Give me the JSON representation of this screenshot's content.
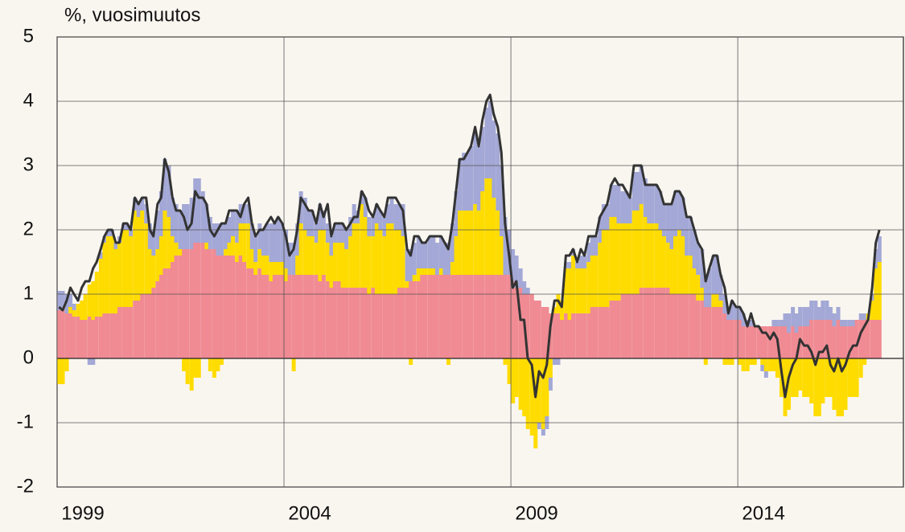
{
  "chart_data": {
    "type": "bar",
    "stacked": true,
    "y_label": "%, vuosimuutos",
    "xlim": [
      1999,
      2017.65
    ],
    "xticks": [
      1999,
      2004,
      2009,
      2014
    ],
    "ylim": [
      -2,
      5
    ],
    "yticks": [
      -2,
      -1,
      0,
      1,
      2,
      3,
      4,
      5
    ],
    "grid": true,
    "x": [
      1999,
      1999.08,
      1999.17,
      1999.25,
      1999.33,
      1999.42,
      1999.5,
      1999.58,
      1999.67,
      1999.75,
      1999.83,
      1999.92,
      2000,
      2000.08,
      2000.17,
      2000.25,
      2000.33,
      2000.42,
      2000.5,
      2000.58,
      2000.67,
      2000.75,
      2000.83,
      2000.92,
      2001,
      2001.08,
      2001.17,
      2001.25,
      2001.33,
      2001.42,
      2001.5,
      2001.58,
      2001.67,
      2001.75,
      2001.83,
      2001.92,
      2002,
      2002.08,
      2002.17,
      2002.25,
      2002.33,
      2002.42,
      2002.5,
      2002.58,
      2002.67,
      2002.75,
      2002.83,
      2002.92,
      2003,
      2003.08,
      2003.17,
      2003.25,
      2003.33,
      2003.42,
      2003.5,
      2003.58,
      2003.67,
      2003.75,
      2003.83,
      2003.92,
      2004,
      2004.08,
      2004.17,
      2004.25,
      2004.33,
      2004.42,
      2004.5,
      2004.58,
      2004.67,
      2004.75,
      2004.83,
      2004.92,
      2005,
      2005.08,
      2005.17,
      2005.25,
      2005.33,
      2005.42,
      2005.5,
      2005.58,
      2005.67,
      2005.75,
      2005.83,
      2005.92,
      2006,
      2006.08,
      2006.17,
      2006.25,
      2006.33,
      2006.42,
      2006.5,
      2006.58,
      2006.67,
      2006.75,
      2006.83,
      2006.92,
      2007,
      2007.08,
      2007.17,
      2007.25,
      2007.33,
      2007.42,
      2007.5,
      2007.58,
      2007.67,
      2007.75,
      2007.83,
      2007.92,
      2008,
      2008.08,
      2008.17,
      2008.25,
      2008.33,
      2008.42,
      2008.5,
      2008.58,
      2008.67,
      2008.75,
      2008.83,
      2008.92,
      2009,
      2009.08,
      2009.17,
      2009.25,
      2009.33,
      2009.42,
      2009.5,
      2009.58,
      2009.67,
      2009.75,
      2009.83,
      2009.92,
      2010,
      2010.08,
      2010.17,
      2010.25,
      2010.33,
      2010.42,
      2010.5,
      2010.58,
      2010.67,
      2010.75,
      2010.83,
      2010.92,
      2011,
      2011.08,
      2011.17,
      2011.25,
      2011.33,
      2011.42,
      2011.5,
      2011.58,
      2011.67,
      2011.75,
      2011.83,
      2011.92,
      2012,
      2012.08,
      2012.17,
      2012.25,
      2012.33,
      2012.42,
      2012.5,
      2012.58,
      2012.67,
      2012.75,
      2012.83,
      2012.92,
      2013,
      2013.08,
      2013.17,
      2013.25,
      2013.33,
      2013.42,
      2013.5,
      2013.58,
      2013.67,
      2013.75,
      2013.83,
      2013.92,
      2014,
      2014.08,
      2014.17,
      2014.25,
      2014.33,
      2014.42,
      2014.5,
      2014.58,
      2014.67,
      2014.75,
      2014.83,
      2014.92,
      2015,
      2015.08,
      2015.17,
      2015.25,
      2015.33,
      2015.42,
      2015.5,
      2015.58,
      2015.67,
      2015.75,
      2015.83,
      2015.92,
      2016,
      2016.08,
      2016.17,
      2016.25,
      2016.33,
      2016.42,
      2016.5,
      2016.58,
      2016.67,
      2016.75,
      2016.83,
      2016.92,
      2017,
      2017.08
    ],
    "series": [
      {
        "color": "#f08b94",
        "values": [
          0.75,
          0.75,
          0.7,
          0.7,
          0.65,
          0.65,
          0.6,
          0.6,
          0.65,
          0.6,
          0.65,
          0.65,
          0.7,
          0.7,
          0.7,
          0.7,
          0.8,
          0.8,
          0.8,
          0.8,
          0.9,
          0.9,
          1.0,
          1.0,
          1.0,
          1.1,
          1.2,
          1.3,
          1.4,
          1.4,
          1.5,
          1.6,
          1.6,
          1.7,
          1.7,
          1.7,
          1.8,
          1.8,
          1.8,
          1.7,
          1.7,
          1.7,
          1.6,
          1.6,
          1.6,
          1.6,
          1.6,
          1.5,
          1.6,
          1.5,
          1.4,
          1.4,
          1.3,
          1.4,
          1.3,
          1.3,
          1.2,
          1.3,
          1.3,
          1.3,
          1.2,
          1.3,
          1.3,
          1.3,
          1.3,
          1.3,
          1.3,
          1.3,
          1.3,
          1.2,
          1.3,
          1.2,
          1.1,
          1.2,
          1.2,
          1.1,
          1.1,
          1.1,
          1.1,
          1.1,
          1.1,
          1.1,
          1.0,
          1.1,
          1.0,
          1.0,
          1.0,
          1.0,
          1.0,
          1.0,
          1.1,
          1.1,
          1.1,
          1.2,
          1.2,
          1.2,
          1.3,
          1.3,
          1.3,
          1.3,
          1.3,
          1.3,
          1.3,
          1.3,
          1.3,
          1.3,
          1.3,
          1.3,
          1.3,
          1.3,
          1.3,
          1.3,
          1.3,
          1.3,
          1.3,
          1.3,
          1.3,
          1.3,
          1.3,
          1.3,
          1.2,
          1.1,
          1.1,
          1.0,
          1.0,
          1.0,
          0.9,
          0.9,
          0.8,
          0.8,
          0.7,
          0.7,
          0.7,
          0.6,
          0.7,
          0.6,
          0.7,
          0.7,
          0.7,
          0.7,
          0.7,
          0.8,
          0.8,
          0.8,
          0.8,
          0.8,
          0.9,
          0.9,
          0.9,
          1.0,
          1.0,
          1.0,
          1.0,
          1.0,
          1.1,
          1.1,
          1.1,
          1.1,
          1.1,
          1.1,
          1.1,
          1.1,
          1.0,
          1.0,
          1.0,
          1.0,
          1.0,
          1.0,
          1.0,
          0.9,
          0.9,
          0.8,
          0.8,
          0.8,
          0.8,
          0.8,
          0.7,
          0.6,
          0.6,
          0.6,
          0.6,
          0.5,
          0.5,
          0.5,
          0.5,
          0.5,
          0.5,
          0.5,
          0.5,
          0.5,
          0.5,
          0.5,
          0.5,
          0.4,
          0.5,
          0.4,
          0.5,
          0.5,
          0.5,
          0.6,
          0.6,
          0.6,
          0.6,
          0.6,
          0.6,
          0.5,
          0.6,
          0.5,
          0.5,
          0.5,
          0.5,
          0.6,
          0.6,
          0.6,
          0.6,
          0.6,
          0.6,
          0.6
        ]
      },
      {
        "color": "#ffdc00",
        "values": [
          -0.4,
          -0.4,
          -0.2,
          0.1,
          0.1,
          0.2,
          0.3,
          0.4,
          0.5,
          0.6,
          0.7,
          0.9,
          1.1,
          1.2,
          1.2,
          1.0,
          1.0,
          1.2,
          1.2,
          1.1,
          1.4,
          1.3,
          1.3,
          1.1,
          0.7,
          0.5,
          0.5,
          0.6,
          0.9,
          0.8,
          0.4,
          0.2,
          0.1,
          -0.2,
          -0.4,
          -0.5,
          -0.3,
          -0.3,
          0.0,
          0.1,
          -0.2,
          -0.3,
          -0.2,
          -0.1,
          0.1,
          0.2,
          0.3,
          0.3,
          0.5,
          0.6,
          0.7,
          0.3,
          0.2,
          0.3,
          0.3,
          0.3,
          0.3,
          0.2,
          0.2,
          0.2,
          0.2,
          0.0,
          -0.2,
          0.3,
          0.8,
          0.7,
          0.6,
          0.6,
          0.5,
          0.8,
          0.7,
          0.6,
          0.5,
          0.6,
          0.6,
          0.7,
          0.6,
          0.8,
          1.0,
          1.0,
          1.3,
          1.1,
          0.9,
          0.8,
          1.1,
          1.0,
          0.9,
          1.1,
          1.1,
          1.0,
          0.9,
          0.8,
          0.1,
          -0.1,
          0.1,
          0.2,
          0.1,
          0.1,
          0.1,
          0.1,
          0.0,
          0.1,
          0.0,
          -0.1,
          0.2,
          0.6,
          1.0,
          1.0,
          1.0,
          1.0,
          1.1,
          1.0,
          1.3,
          1.5,
          1.5,
          1.2,
          1.0,
          0.6,
          -0.1,
          -0.4,
          -0.7,
          -0.6,
          -0.8,
          -0.9,
          -1.1,
          -1.2,
          -1.4,
          -1.0,
          -1.1,
          -0.9,
          -0.3,
          0.1,
          0.3,
          0.3,
          0.7,
          0.8,
          0.9,
          0.7,
          0.7,
          0.7,
          0.8,
          0.8,
          0.8,
          1.0,
          1.2,
          1.2,
          1.3,
          1.3,
          1.2,
          1.1,
          1.1,
          1.1,
          1.3,
          1.3,
          1.3,
          1.1,
          1.0,
          1.0,
          1.0,
          0.9,
          0.8,
          0.7,
          0.7,
          0.9,
          1.0,
          0.9,
          0.6,
          0.6,
          0.4,
          0.4,
          0.2,
          -0.1,
          0.0,
          0.2,
          0.2,
          0.1,
          -0.1,
          -0.1,
          -0.1,
          0.0,
          -0.1,
          -0.2,
          -0.2,
          -0.1,
          -0.1,
          0.0,
          -0.1,
          -0.2,
          -0.2,
          -0.2,
          -0.3,
          -0.6,
          -0.9,
          -0.8,
          -0.6,
          -0.6,
          -0.5,
          -0.6,
          -0.6,
          -0.7,
          -0.9,
          -0.9,
          -0.7,
          -0.6,
          -0.6,
          -0.8,
          -0.9,
          -0.9,
          -0.8,
          -0.6,
          -0.6,
          -0.6,
          -0.3,
          -0.1,
          0.1,
          0.3,
          0.8,
          0.9
        ]
      },
      {
        "color": "#a3a8d6",
        "values": [
          0.3,
          0.3,
          0.3,
          0.2,
          0.1,
          0.0,
          0.0,
          0.0,
          -0.1,
          -0.1,
          0.0,
          0.1,
          0.1,
          0.1,
          0.1,
          0.1,
          0.1,
          0.1,
          0.1,
          0.1,
          0.2,
          0.2,
          0.2,
          0.3,
          0.4,
          0.4,
          0.6,
          0.7,
          0.8,
          0.8,
          0.6,
          0.6,
          0.6,
          0.7,
          0.7,
          0.8,
          1.0,
          1.0,
          0.8,
          0.6,
          0.5,
          0.4,
          0.5,
          0.5,
          0.4,
          0.4,
          0.4,
          0.5,
          0.3,
          0.3,
          0.3,
          0.4,
          0.4,
          0.4,
          0.4,
          0.5,
          0.6,
          0.6,
          0.7,
          0.6,
          0.6,
          0.5,
          0.5,
          0.5,
          0.5,
          0.5,
          0.4,
          0.4,
          0.3,
          0.4,
          0.3,
          0.3,
          0.3,
          0.3,
          0.3,
          0.3,
          0.3,
          0.3,
          0.3,
          0.2,
          0.2,
          0.3,
          0.3,
          0.3,
          0.3,
          0.3,
          0.3,
          0.3,
          0.4,
          0.4,
          0.4,
          0.5,
          0.5,
          0.5,
          0.5,
          0.5,
          0.4,
          0.4,
          0.5,
          0.5,
          0.5,
          0.5,
          0.5,
          0.5,
          0.6,
          0.7,
          0.8,
          0.9,
          0.9,
          1.0,
          1.1,
          1.0,
          1.0,
          1.1,
          1.2,
          1.2,
          1.2,
          1.1,
          0.9,
          0.7,
          0.5,
          0.5,
          0.3,
          0.2,
          0.1,
          0.0,
          0.0,
          -0.1,
          -0.1,
          -0.2,
          -0.2,
          -0.1,
          -0.1,
          0.0,
          0.1,
          0.1,
          0.1,
          0.1,
          0.2,
          0.2,
          0.3,
          0.3,
          0.3,
          0.4,
          0.4,
          0.4,
          0.5,
          0.5,
          0.6,
          0.5,
          0.5,
          0.4,
          0.6,
          0.6,
          0.6,
          0.6,
          0.6,
          0.6,
          0.6,
          0.6,
          0.5,
          0.6,
          0.7,
          0.7,
          0.6,
          0.6,
          0.6,
          0.6,
          0.6,
          0.5,
          0.6,
          0.5,
          0.6,
          0.6,
          0.6,
          0.4,
          0.3,
          0.2,
          0.3,
          0.2,
          0.2,
          0.2,
          0.1,
          0.1,
          0.0,
          0.0,
          -0.1,
          -0.1,
          0.0,
          0.1,
          0.1,
          0.1,
          0.2,
          0.3,
          0.3,
          0.3,
          0.3,
          0.3,
          0.3,
          0.3,
          0.3,
          0.2,
          0.3,
          0.3,
          0.2,
          0.2,
          0.2,
          0.1,
          0.1,
          0.1,
          0.1,
          0.0,
          0.1,
          0.1,
          0.0,
          0.1,
          0.3,
          0.4
        ]
      },
      {
        "type": "line",
        "color": "#333333",
        "values": [
          0.8,
          0.75,
          0.9,
          1.1,
          1.0,
          0.9,
          1.1,
          1.2,
          1.2,
          1.4,
          1.5,
          1.7,
          1.9,
          2.0,
          2.0,
          1.8,
          1.8,
          2.1,
          2.1,
          2.0,
          2.5,
          2.4,
          2.5,
          2.5,
          2.0,
          1.9,
          2.4,
          2.5,
          3.1,
          2.9,
          2.5,
          2.3,
          2.3,
          2.2,
          2.0,
          2.1,
          2.6,
          2.5,
          2.5,
          2.4,
          2.0,
          1.9,
          2.0,
          2.1,
          2.1,
          2.3,
          2.3,
          2.3,
          2.2,
          2.4,
          2.5,
          2.1,
          1.9,
          2.0,
          2.0,
          2.1,
          2.2,
          2.1,
          2.2,
          2.1,
          1.9,
          1.6,
          1.7,
          2.0,
          2.5,
          2.4,
          2.3,
          2.3,
          2.1,
          2.4,
          2.2,
          2.4,
          1.9,
          2.1,
          2.1,
          2.1,
          2.0,
          2.1,
          2.2,
          2.2,
          2.6,
          2.5,
          2.3,
          2.2,
          2.4,
          2.3,
          2.2,
          2.5,
          2.5,
          2.5,
          2.4,
          2.3,
          1.7,
          1.6,
          1.9,
          1.9,
          1.8,
          1.8,
          1.9,
          1.9,
          1.9,
          1.9,
          1.8,
          1.7,
          2.1,
          2.6,
          3.1,
          3.1,
          3.2,
          3.3,
          3.6,
          3.3,
          3.7,
          4.0,
          4.1,
          3.8,
          3.6,
          3.2,
          2.1,
          1.6,
          1.1,
          1.2,
          0.6,
          0.6,
          0.0,
          -0.1,
          -0.6,
          -0.2,
          -0.3,
          -0.1,
          0.5,
          0.9,
          0.9,
          0.8,
          1.6,
          1.6,
          1.7,
          1.5,
          1.7,
          1.6,
          1.9,
          1.9,
          1.9,
          2.2,
          2.3,
          2.4,
          2.7,
          2.8,
          2.7,
          2.7,
          2.6,
          2.5,
          3.0,
          3.0,
          3.0,
          2.7,
          2.7,
          2.7,
          2.7,
          2.6,
          2.4,
          2.4,
          2.4,
          2.6,
          2.6,
          2.5,
          2.2,
          2.2,
          2.0,
          1.8,
          1.7,
          1.2,
          1.4,
          1.6,
          1.6,
          1.3,
          1.1,
          0.7,
          0.9,
          0.8,
          0.8,
          0.7,
          0.5,
          0.7,
          0.5,
          0.5,
          0.4,
          0.4,
          0.3,
          0.4,
          0.3,
          -0.2,
          -0.6,
          -0.3,
          -0.1,
          0.0,
          0.3,
          0.2,
          0.2,
          0.1,
          -0.1,
          0.1,
          0.1,
          0.2,
          -0.1,
          -0.2,
          0.0,
          -0.2,
          -0.1,
          0.1,
          0.2,
          0.2,
          0.4,
          0.5,
          0.6,
          1.1,
          1.8,
          2.0
        ]
      }
    ]
  }
}
